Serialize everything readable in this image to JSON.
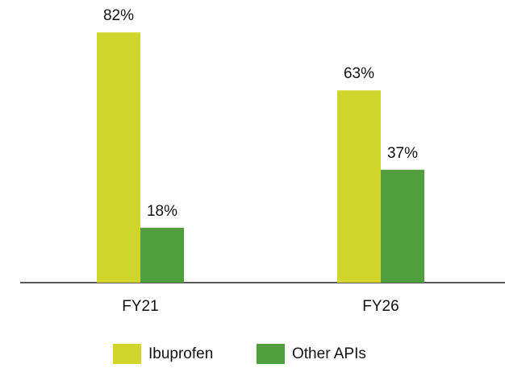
{
  "chart_data": {
    "type": "bar",
    "categories": [
      "FY21",
      "FY26"
    ],
    "series": [
      {
        "name": "Ibuprofen",
        "color": "#d2d52b",
        "values": [
          82,
          63
        ],
        "value_labels": [
          "82%",
          "63%"
        ]
      },
      {
        "name": "Other APIs",
        "color": "#519e3e",
        "values": [
          18,
          37
        ],
        "value_labels": [
          "18%",
          "37%"
        ]
      }
    ]
  }
}
